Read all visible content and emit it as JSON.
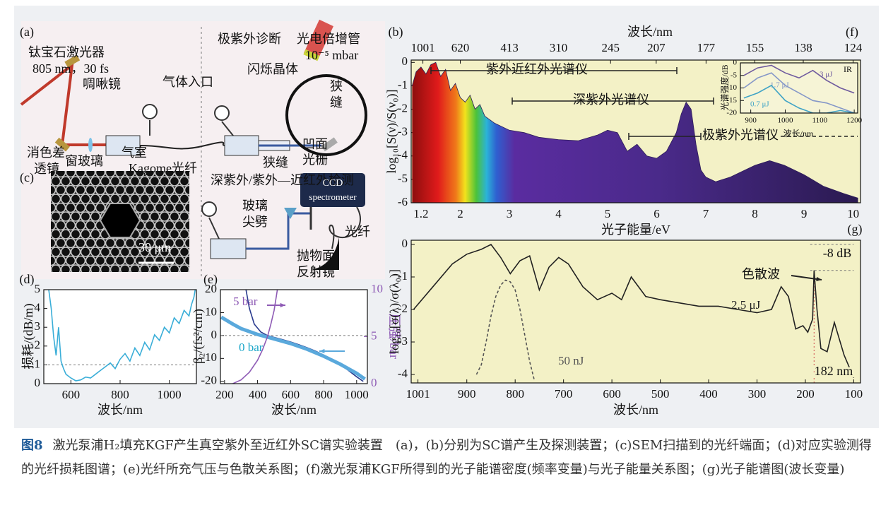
{
  "figure": {
    "panel_labels": [
      "(a)",
      "(b)",
      "(c)",
      "(d)",
      "(e)",
      "(f)",
      "(g)"
    ]
  },
  "setup": {
    "labels": [
      "钛宝石激光器",
      "805 nm，30 fs",
      "气体入口",
      "啁啾镜",
      "消色差",
      "透镜",
      "窗玻璃",
      "气室",
      "Kagome光纤",
      "极紫外诊断",
      "光电倍增管",
      "10⁻⁵ mbar",
      "闪烁晶体",
      "狭",
      "缝",
      "凹面",
      "光栅",
      "狭缝",
      "深紫外/紫外—近红外检测",
      "玻璃",
      "尖劈",
      "CCD",
      "spectrometer",
      "光纤",
      "抛物面",
      "反射镜",
      "30 μm"
    ]
  },
  "chart_data": [
    {
      "type": "line",
      "xlabel": "波长/nm",
      "ylabel": "损耗/(dB/m)",
      "xlim": [
        490,
        1110
      ],
      "ylim": [
        0,
        5
      ],
      "xticks": [
        600,
        800,
        1000
      ],
      "yticks": [
        0,
        1,
        2,
        3,
        4,
        5
      ],
      "reference_lines": [
        1
      ],
      "series": [
        {
          "color": "#3aaed8",
          "x": [
            510,
            520,
            530,
            540,
            550,
            560,
            570,
            580,
            600,
            620,
            640,
            660,
            680,
            700,
            720,
            740,
            760,
            780,
            800,
            820,
            840,
            860,
            880,
            900,
            920,
            940,
            960,
            980,
            1000,
            1020,
            1040,
            1060,
            1080,
            1090,
            1100,
            1105
          ],
          "values": [
            5,
            4,
            2.5,
            1.5,
            3,
            1.2,
            0.8,
            0.5,
            0.3,
            0.15,
            0.2,
            0.35,
            0.3,
            0.5,
            0.7,
            0.9,
            1.1,
            0.8,
            1.3,
            1.6,
            1.2,
            1.9,
            1.5,
            2.2,
            1.8,
            2.6,
            2.3,
            3.0,
            2.7,
            3.5,
            3.2,
            3.9,
            3.6,
            4.2,
            4.6,
            5
          ]
        }
      ]
    },
    {
      "type": "line",
      "xlabel": "波长/nm",
      "ylabel": "β₂/(fs²/cm)",
      "y2label": "压强/bar",
      "xlim": [
        175,
        1065
      ],
      "ylim": [
        -21,
        20
      ],
      "xticks": [
        200,
        400,
        600,
        800,
        1000
      ],
      "yticks": [
        -20,
        -10,
        0,
        10,
        20
      ],
      "y2lim": [
        0,
        10
      ],
      "y2ticks": [
        0,
        5,
        10
      ],
      "reference_lines": [
        0
      ],
      "series": [
        {
          "name": "5 bar",
          "color": "#2a3b8f",
          "x": [
            330,
            350,
            380,
            420,
            460,
            500,
            550,
            600,
            650,
            700,
            750,
            800,
            850,
            900,
            950,
            1000,
            1040
          ],
          "values": [
            20,
            12,
            5,
            1.5,
            0,
            -0.8,
            -1.8,
            -2.8,
            -4,
            -5.3,
            -6.8,
            -8.5,
            -10.5,
            -12.7,
            -15.2,
            -18,
            -20
          ]
        },
        {
          "name": "0 bar",
          "color": "#5aa9dc",
          "width": 5,
          "x": [
            180,
            250,
            300,
            400,
            500,
            600,
            700,
            800,
            900,
            1000,
            1050
          ],
          "values": [
            8,
            5,
            3,
            0.5,
            -1.5,
            -3.5,
            -6,
            -9,
            -12.5,
            -16.5,
            -19
          ]
        },
        {
          "color": "#8e5bb5",
          "axis": "y2",
          "x": [
            250,
            300,
            350,
            400,
            430,
            460,
            480,
            500,
            520
          ],
          "values": [
            0,
            0.4,
            1.2,
            2.5,
            3.6,
            5,
            6.3,
            7.8,
            10
          ]
        }
      ]
    },
    {
      "type": "area",
      "x2label": "波长/nm",
      "xlabel": "光子能量/eV",
      "ylabel": "log₁₀[S(ν)/S(ν₀)]",
      "xlim": [
        1.0,
        10.15
      ],
      "ylim": [
        -6,
        0.1
      ],
      "xticks": [
        1.2,
        2,
        3,
        4,
        5,
        6,
        7,
        8,
        9,
        10
      ],
      "x2ticks": [
        1001,
        620,
        413,
        310,
        245,
        207,
        177,
        155,
        138,
        124
      ],
      "yticks": [
        0,
        -1,
        -2,
        -3,
        -4,
        -5,
        -6
      ],
      "plot_background": "#f3f1c6",
      "annotations": [
        "紫外近红外光谱仪",
        "深紫外光谱仪",
        "极紫外光谱仪"
      ],
      "series": [
        {
          "color": "#2e1d5a",
          "x": [
            1.02,
            1.1,
            1.2,
            1.3,
            1.4,
            1.5,
            1.6,
            1.7,
            1.8,
            1.9,
            2.0,
            2.1,
            2.2,
            2.3,
            2.4,
            2.5,
            2.7,
            3.0,
            3.3,
            3.6,
            4.0,
            4.4,
            4.8,
            5.0,
            5.2,
            5.4,
            5.6,
            5.8,
            6.0,
            6.2,
            6.4,
            6.5,
            6.6,
            6.7,
            6.8,
            6.9,
            7.0,
            7.2,
            7.5,
            7.8,
            8.0,
            8.3,
            8.6,
            9.0,
            9.4,
            9.8,
            10.1
          ],
          "values": [
            -1.0,
            -0.4,
            -0.2,
            -0.5,
            -0.1,
            0.0,
            -0.6,
            -0.3,
            -1.2,
            -0.9,
            -1.5,
            -1.7,
            -1.4,
            -2.0,
            -1.8,
            -2.3,
            -2.6,
            -2.9,
            -3.0,
            -3.2,
            -3.3,
            -3.35,
            -3.1,
            -2.9,
            -3.0,
            -3.8,
            -3.5,
            -4.0,
            -4.1,
            -3.8,
            -3.0,
            -2.2,
            -1.7,
            -2.0,
            -3.5,
            -4.6,
            -4.9,
            -5.1,
            -4.9,
            -4.6,
            -4.4,
            -4.2,
            -4.4,
            -4.8,
            -5.3,
            -5.6,
            -5.8
          ]
        }
      ]
    },
    {
      "type": "line",
      "xlabel": "波长/nm",
      "ylabel": "光谱强度/dB",
      "xlim": [
        870,
        1210
      ],
      "ylim": [
        -20,
        0
      ],
      "xticks": [
        900,
        1000,
        1100,
        1200
      ],
      "yticks": [
        0,
        -5,
        -10,
        -15,
        -20
      ],
      "plot_background": "#f6f4d6",
      "annotations": [
        "IR"
      ],
      "series": [
        {
          "name": "3 μJ",
          "color": "#6f5a9e",
          "x": [
            880,
            920,
            960,
            1000,
            1040,
            1080,
            1120,
            1160,
            1200
          ],
          "values": [
            -5,
            -2,
            -1,
            -4,
            -6,
            -3,
            -7,
            -10,
            -12
          ]
        },
        {
          "name": "1.7 μJ",
          "color": "#8597c8",
          "x": [
            880,
            920,
            960,
            1000,
            1040,
            1080,
            1120,
            1160,
            1200
          ],
          "values": [
            -10,
            -6,
            -4,
            -9,
            -12,
            -15,
            -16,
            -18,
            -20
          ]
        },
        {
          "name": "0.7 μJ",
          "color": "#3fa3c6",
          "x": [
            880,
            920,
            960,
            1000,
            1040,
            1080,
            1120,
            1160,
            1200
          ],
          "values": [
            -14,
            -12,
            -9,
            -15,
            -18,
            -20,
            -20,
            -19,
            -20
          ]
        }
      ]
    },
    {
      "type": "line",
      "xlabel": "波长/nm",
      "ylabel": "log₁₀[σ(λ)/σ(λ₀)]",
      "xlim": [
        1015,
        86
      ],
      "ylim": [
        -4.26,
        0.13
      ],
      "xticks": [
        1001,
        900,
        800,
        700,
        600,
        500,
        400,
        300,
        200,
        100
      ],
      "yticks": [
        0,
        -1,
        -2,
        -3,
        -4
      ],
      "plot_background": "#f3f1c6",
      "reference_lines": [
        0,
        -0.8
      ],
      "vlines": [
        182
      ],
      "annotations": [
        "色散波",
        "-8 dB",
        "182 nm"
      ],
      "series": [
        {
          "name": "2.5 μJ",
          "color": "#222222",
          "x": [
            1010,
            970,
            930,
            900,
            870,
            850,
            830,
            810,
            790,
            770,
            750,
            730,
            710,
            690,
            660,
            630,
            600,
            580,
            560,
            530,
            500,
            460,
            420,
            380,
            340,
            300,
            270,
            250,
            235,
            220,
            205,
            195,
            185,
            182,
            176,
            168,
            155,
            140,
            120,
            100
          ],
          "values": [
            -2.0,
            -1.3,
            -0.6,
            -0.3,
            -0.15,
            0.0,
            -0.4,
            -0.9,
            -0.5,
            -0.35,
            -1.4,
            -0.7,
            -0.4,
            -0.6,
            -1.3,
            -1.7,
            -1.5,
            -1.7,
            -1.0,
            -1.6,
            -1.7,
            -1.8,
            -1.9,
            -1.9,
            -2.0,
            -2.1,
            -2.0,
            -1.3,
            -1.6,
            -2.6,
            -2.5,
            -2.7,
            -2.3,
            -0.8,
            -2.0,
            -3.2,
            -3.3,
            -2.4,
            -3.4,
            -4.1
          ]
        },
        {
          "name": "50 nJ",
          "color": "#555555",
          "dash": true,
          "x": [
            880,
            870,
            860,
            850,
            840,
            830,
            820,
            810,
            800,
            790,
            780,
            770,
            760
          ],
          "values": [
            -4.0,
            -3.7,
            -3.0,
            -2.2,
            -1.6,
            -1.25,
            -1.1,
            -1.15,
            -1.4,
            -2.0,
            -2.8,
            -3.6,
            -4.2
          ]
        }
      ]
    }
  ],
  "caption": {
    "label": "图8",
    "text": "激光泵浦H₂填充KGF产生真空紫外至近红外SC谱实验装置　(a)，(b)分别为SC谱产生及探测装置；(c)SEM扫描到的光纤端面；(d)对应实验测得的光纤损耗图谱；(e)光纤所充气压与色散关系图；(f)激光泵浦KGF所得到的光子能谱密度(频率变量)与光子能量关系图；(g)光子能谱图(波长变量)"
  }
}
